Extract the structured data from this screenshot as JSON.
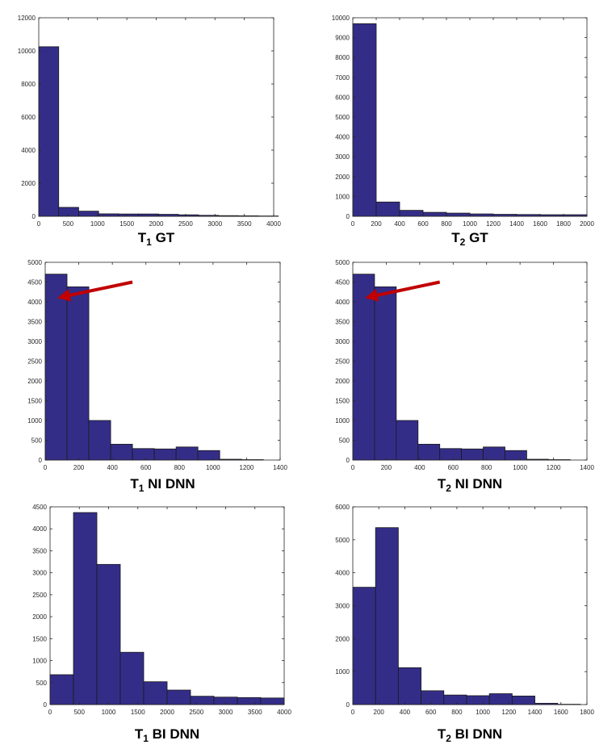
{
  "chart_data": [
    {
      "type": "bar",
      "caption": {
        "main": "T",
        "sub": "1",
        "rest": " GT"
      },
      "x": [
        170,
        510,
        850,
        1190,
        1530,
        1870,
        2210,
        2550,
        2890,
        3230,
        3570,
        3910
      ],
      "values": [
        10250,
        540,
        310,
        150,
        140,
        140,
        120,
        90,
        60,
        40,
        30,
        20
      ],
      "bin_width": 340,
      "xlim": [
        0,
        4000
      ],
      "ylim": [
        0,
        12000
      ],
      "xticks": [
        0,
        500,
        1000,
        1500,
        2000,
        2500,
        3000,
        3500,
        4000
      ],
      "yticks": [
        0,
        2000,
        4000,
        6000,
        8000,
        10000,
        12000
      ],
      "grid": false
    },
    {
      "type": "bar",
      "caption": {
        "main": "T",
        "sub": "2",
        "rest": " GT"
      },
      "x": [
        100,
        300,
        500,
        700,
        900,
        1100,
        1300,
        1500,
        1700,
        1900
      ],
      "values": [
        9700,
        720,
        300,
        200,
        160,
        120,
        100,
        90,
        80,
        80
      ],
      "bin_width": 200,
      "xlim": [
        0,
        2000
      ],
      "ylim": [
        0,
        10000
      ],
      "xticks": [
        0,
        200,
        400,
        600,
        800,
        1000,
        1200,
        1400,
        1600,
        1800,
        2000
      ],
      "yticks": [
        0,
        1000,
        2000,
        3000,
        4000,
        5000,
        6000,
        7000,
        8000,
        9000,
        10000
      ],
      "grid": false
    },
    {
      "type": "bar",
      "caption": {
        "main": "T",
        "sub": "1",
        "rest": " NI DNN"
      },
      "x": [
        65,
        195,
        325,
        455,
        585,
        715,
        845,
        975,
        1105,
        1235
      ],
      "values": [
        4700,
        4380,
        1000,
        400,
        290,
        280,
        330,
        240,
        20,
        10
      ],
      "bin_width": 130,
      "xlim": [
        0,
        1400
      ],
      "ylim": [
        0,
        5000
      ],
      "xticks": [
        0,
        200,
        400,
        600,
        800,
        1000,
        1200,
        1400
      ],
      "yticks": [
        0,
        500,
        1000,
        1500,
        2000,
        2500,
        3000,
        3500,
        4000,
        4500,
        5000
      ],
      "grid": false,
      "annotation": {
        "type": "arrow",
        "color": "#c00000",
        "from": [
          520,
          4500
        ],
        "to": [
          95,
          4120
        ]
      }
    },
    {
      "type": "bar",
      "caption": {
        "main": "T",
        "sub": "2",
        "rest": " NI DNN"
      },
      "x": [
        65,
        195,
        325,
        455,
        585,
        715,
        845,
        975,
        1105,
        1235
      ],
      "values": [
        4700,
        4380,
        1000,
        400,
        290,
        280,
        330,
        240,
        20,
        10
      ],
      "bin_width": 130,
      "xlim": [
        0,
        1400
      ],
      "ylim": [
        0,
        5000
      ],
      "xticks": [
        0,
        200,
        400,
        600,
        800,
        1000,
        1200,
        1400
      ],
      "yticks": [
        0,
        500,
        1000,
        1500,
        2000,
        2500,
        3000,
        3500,
        4000,
        4500,
        5000
      ],
      "grid": false,
      "annotation": {
        "type": "arrow",
        "color": "#c00000",
        "from": [
          520,
          4500
        ],
        "to": [
          95,
          4120
        ]
      }
    },
    {
      "type": "bar",
      "caption": {
        "main": "T",
        "sub": "1",
        "rest": " BI DNN"
      },
      "x": [
        200,
        600,
        1000,
        1400,
        1800,
        2200,
        2600,
        3000,
        3400,
        3800
      ],
      "values": [
        680,
        4370,
        3190,
        1190,
        520,
        330,
        190,
        170,
        160,
        150
      ],
      "bin_width": 400,
      "xlim": [
        0,
        4000
      ],
      "ylim": [
        0,
        4500
      ],
      "xticks": [
        0,
        500,
        1000,
        1500,
        2000,
        2500,
        3000,
        3500,
        4000
      ],
      "yticks": [
        0,
        500,
        1000,
        1500,
        2000,
        2500,
        3000,
        3500,
        4000,
        4500
      ],
      "grid": false
    },
    {
      "type": "bar",
      "caption": {
        "main": "T",
        "sub": "2",
        "rest": " BI DNN"
      },
      "x": [
        87.5,
        262.5,
        437.5,
        612.5,
        787.5,
        962.5,
        1137.5,
        1312.5,
        1487.5,
        1662.5
      ],
      "values": [
        3560,
        5370,
        1120,
        420,
        290,
        270,
        330,
        260,
        40,
        10
      ],
      "bin_width": 175,
      "xlim": [
        0,
        1800
      ],
      "ylim": [
        0,
        6000
      ],
      "xticks": [
        0,
        200,
        400,
        600,
        800,
        1000,
        1200,
        1400,
        1600,
        1800
      ],
      "yticks": [
        0,
        1000,
        2000,
        3000,
        4000,
        5000,
        6000
      ],
      "grid": false
    }
  ]
}
